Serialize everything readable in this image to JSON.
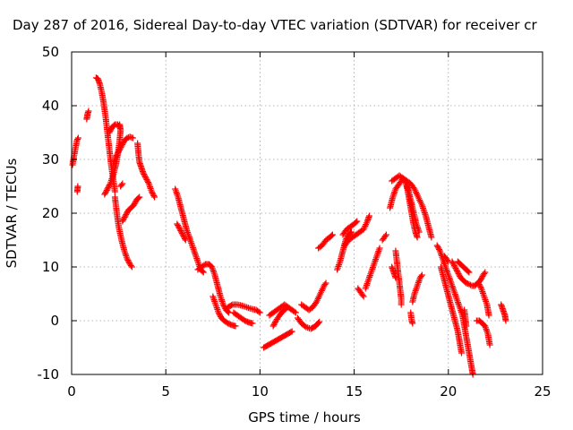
{
  "chart_data": {
    "type": "scatter",
    "title": "Day 287 of 2016, Sidereal Day-to-day VTEC variation (SDTVAR) for receiver cr",
    "xlabel": "GPS time / hours",
    "ylabel": "SDTVAR / TECUs",
    "xlim": [
      0,
      25
    ],
    "ylim": [
      -10,
      50
    ],
    "xticks": [
      "0",
      "5",
      "10",
      "15",
      "20",
      "25"
    ],
    "yticks": [
      "-10",
      "0",
      "10",
      "20",
      "30",
      "40",
      "50"
    ],
    "grid": true,
    "marker": "+",
    "color": "#ff0000",
    "segments": [
      [
        [
          0.05,
          29
        ],
        [
          0.12,
          30.5
        ],
        [
          0.2,
          32
        ],
        [
          0.28,
          33.5
        ],
        [
          0.35,
          34
        ]
      ],
      [
        [
          0.3,
          24
        ],
        [
          0.33,
          25
        ]
      ],
      [
        [
          0.8,
          37.5
        ],
        [
          0.85,
          38.5
        ],
        [
          0.9,
          39
        ]
      ],
      [
        [
          1.3,
          45.2
        ],
        [
          1.4,
          45
        ],
        [
          1.5,
          44
        ],
        [
          1.6,
          42.5
        ],
        [
          1.7,
          40.5
        ],
        [
          1.8,
          38
        ],
        [
          1.9,
          35
        ],
        [
          2.0,
          32
        ],
        [
          2.1,
          29
        ],
        [
          2.2,
          26.5
        ],
        [
          2.3,
          24
        ]
      ],
      [
        [
          1.75,
          23.5
        ],
        [
          1.9,
          24.5
        ],
        [
          2.05,
          25.5
        ],
        [
          2.2,
          27
        ],
        [
          2.35,
          29
        ],
        [
          2.45,
          31
        ],
        [
          2.55,
          33.5
        ],
        [
          2.6,
          35.5
        ],
        [
          2.55,
          36.5
        ]
      ],
      [
        [
          2.0,
          35
        ],
        [
          2.15,
          36
        ],
        [
          2.3,
          36.5
        ],
        [
          2.45,
          36.5
        ],
        [
          2.55,
          36
        ]
      ],
      [
        [
          2.3,
          23
        ],
        [
          2.4,
          20
        ],
        [
          2.5,
          17.5
        ],
        [
          2.65,
          15
        ],
        [
          2.8,
          13
        ],
        [
          2.95,
          11.5
        ],
        [
          3.1,
          10.5
        ],
        [
          3.2,
          10
        ]
      ],
      [
        [
          2.2,
          29
        ],
        [
          2.35,
          30.5
        ],
        [
          2.5,
          31.5
        ],
        [
          2.65,
          32.5
        ],
        [
          2.8,
          33.5
        ],
        [
          2.95,
          34
        ],
        [
          3.1,
          34.2
        ],
        [
          3.25,
          34
        ]
      ],
      [
        [
          2.7,
          18.5
        ],
        [
          2.85,
          19.5
        ],
        [
          3.0,
          20.5
        ],
        [
          3.15,
          21
        ],
        [
          3.3,
          21.5
        ],
        [
          3.45,
          22.5
        ],
        [
          3.6,
          23
        ]
      ],
      [
        [
          2.6,
          25
        ],
        [
          2.7,
          25.5
        ]
      ],
      [
        [
          3.5,
          33
        ],
        [
          3.55,
          31
        ],
        [
          3.6,
          29.5
        ],
        [
          3.7,
          28.5
        ],
        [
          3.8,
          27.5
        ],
        [
          3.95,
          26.5
        ],
        [
          4.1,
          25.5
        ],
        [
          4.25,
          24
        ],
        [
          4.4,
          23
        ]
      ],
      [
        [
          5.5,
          24.5
        ],
        [
          5.65,
          23
        ],
        [
          5.8,
          21
        ],
        [
          5.95,
          19
        ],
        [
          6.1,
          17
        ],
        [
          6.3,
          15
        ],
        [
          6.5,
          13
        ],
        [
          6.7,
          11
        ],
        [
          6.85,
          9.5
        ],
        [
          7.0,
          9
        ]
      ],
      [
        [
          5.6,
          18
        ],
        [
          5.75,
          17
        ],
        [
          5.9,
          16
        ],
        [
          6.05,
          15
        ]
      ],
      [
        [
          6.7,
          9.5
        ],
        [
          6.9,
          10
        ],
        [
          7.1,
          10.5
        ],
        [
          7.3,
          10.5
        ],
        [
          7.45,
          10
        ],
        [
          7.6,
          8.5
        ],
        [
          7.75,
          6.5
        ],
        [
          7.9,
          4.5
        ],
        [
          8.05,
          3
        ],
        [
          8.2,
          2
        ],
        [
          8.35,
          1.5
        ]
      ],
      [
        [
          7.5,
          4.5
        ],
        [
          7.65,
          3
        ],
        [
          7.8,
          1.5
        ],
        [
          7.95,
          0.5
        ],
        [
          8.1,
          0
        ],
        [
          8.3,
          -0.5
        ],
        [
          8.5,
          -0.8
        ],
        [
          8.7,
          -1
        ]
      ],
      [
        [
          8.3,
          2.5
        ],
        [
          8.55,
          3
        ],
        [
          8.8,
          3
        ],
        [
          9.05,
          2.8
        ],
        [
          9.3,
          2.5
        ],
        [
          9.55,
          2.2
        ],
        [
          9.8,
          2
        ],
        [
          10.0,
          1.5
        ]
      ],
      [
        [
          8.6,
          1.5
        ],
        [
          8.8,
          1
        ],
        [
          9.0,
          0.5
        ],
        [
          9.2,
          0
        ],
        [
          9.4,
          -0.3
        ],
        [
          9.6,
          -0.5
        ]
      ],
      [
        [
          10.2,
          -5
        ],
        [
          10.45,
          -4.5
        ],
        [
          10.7,
          -4
        ],
        [
          10.95,
          -3.5
        ],
        [
          11.2,
          -3
        ],
        [
          11.45,
          -2.5
        ],
        [
          11.7,
          -2
        ]
      ],
      [
        [
          10.5,
          1
        ],
        [
          10.7,
          1.5
        ],
        [
          10.9,
          2
        ],
        [
          11.1,
          2.5
        ],
        [
          11.3,
          3
        ],
        [
          11.5,
          2.5
        ],
        [
          11.7,
          2
        ],
        [
          11.9,
          1.5
        ]
      ],
      [
        [
          10.7,
          -1
        ],
        [
          10.85,
          0
        ],
        [
          11.0,
          0.8
        ],
        [
          11.15,
          1.5
        ],
        [
          11.3,
          2
        ],
        [
          11.45,
          2.5
        ]
      ],
      [
        [
          12.0,
          0.5
        ],
        [
          12.2,
          -0.5
        ],
        [
          12.45,
          -1.2
        ],
        [
          12.7,
          -1.5
        ],
        [
          12.95,
          -1
        ],
        [
          13.15,
          -0.2
        ]
      ],
      [
        [
          12.2,
          3
        ],
        [
          12.4,
          2.5
        ],
        [
          12.6,
          2
        ],
        [
          12.8,
          2.5
        ],
        [
          13.0,
          3.5
        ],
        [
          13.2,
          5
        ],
        [
          13.4,
          6.5
        ],
        [
          13.5,
          7
        ]
      ],
      [
        [
          13.1,
          13.5
        ],
        [
          13.3,
          14
        ],
        [
          13.5,
          15
        ],
        [
          13.7,
          15.5
        ],
        [
          13.85,
          16
        ]
      ],
      [
        [
          14.1,
          9.5
        ],
        [
          14.25,
          11
        ],
        [
          14.4,
          13
        ],
        [
          14.55,
          15
        ],
        [
          14.7,
          16
        ],
        [
          14.85,
          16.5
        ]
      ],
      [
        [
          14.4,
          16
        ],
        [
          14.6,
          17
        ],
        [
          14.8,
          17.5
        ],
        [
          15.0,
          18
        ],
        [
          15.15,
          18.5
        ]
      ],
      [
        [
          14.5,
          14
        ],
        [
          14.7,
          15
        ],
        [
          14.9,
          15.5
        ],
        [
          15.1,
          16
        ],
        [
          15.3,
          16.5
        ],
        [
          15.5,
          17
        ],
        [
          15.7,
          18.5
        ],
        [
          15.8,
          19.5
        ]
      ],
      [
        [
          15.2,
          6
        ],
        [
          15.3,
          5.5
        ],
        [
          15.4,
          5
        ],
        [
          15.5,
          4.5
        ]
      ],
      [
        [
          15.6,
          6
        ],
        [
          15.75,
          7.5
        ],
        [
          15.9,
          9
        ],
        [
          16.05,
          10.5
        ],
        [
          16.2,
          12
        ],
        [
          16.35,
          13.5
        ]
      ],
      [
        [
          16.5,
          15
        ],
        [
          16.6,
          15.5
        ],
        [
          16.7,
          16
        ]
      ],
      [
        [
          16.9,
          21
        ],
        [
          17.05,
          23
        ],
        [
          17.2,
          24.5
        ],
        [
          17.4,
          25.5
        ],
        [
          17.6,
          26.5
        ],
        [
          17.8,
          26
        ],
        [
          18.0,
          25.5
        ],
        [
          18.2,
          24.5
        ],
        [
          18.4,
          23
        ],
        [
          18.6,
          21.5
        ],
        [
          18.8,
          19.5
        ],
        [
          18.95,
          17.5
        ],
        [
          19.1,
          15.5
        ]
      ],
      [
        [
          17.0,
          26
        ],
        [
          17.2,
          26.5
        ],
        [
          17.4,
          27
        ],
        [
          17.6,
          26.5
        ],
        [
          17.75,
          25.5
        ],
        [
          17.85,
          24
        ],
        [
          17.95,
          22
        ],
        [
          18.05,
          20
        ],
        [
          18.15,
          18
        ],
        [
          18.25,
          16.5
        ],
        [
          18.35,
          15.5
        ]
      ],
      [
        [
          17.8,
          25
        ],
        [
          17.9,
          24
        ],
        [
          18.0,
          22.5
        ],
        [
          18.1,
          21
        ],
        [
          18.2,
          19.5
        ],
        [
          18.3,
          18
        ],
        [
          18.45,
          16.5
        ]
      ],
      [
        [
          17.2,
          13
        ],
        [
          17.25,
          11.5
        ],
        [
          17.3,
          10
        ],
        [
          17.35,
          8.5
        ],
        [
          17.4,
          7
        ],
        [
          17.45,
          5.5
        ],
        [
          17.5,
          4
        ],
        [
          17.5,
          3
        ]
      ],
      [
        [
          17.0,
          10
        ],
        [
          17.1,
          9
        ],
        [
          17.2,
          8
        ]
      ],
      [
        [
          18.0,
          1.5
        ],
        [
          18.05,
          0
        ],
        [
          18.1,
          -0.5
        ]
      ],
      [
        [
          18.1,
          3.5
        ],
        [
          18.2,
          5
        ],
        [
          18.35,
          6.5
        ],
        [
          18.5,
          8
        ],
        [
          18.6,
          8.5
        ]
      ],
      [
        [
          19.4,
          14
        ],
        [
          19.55,
          13
        ],
        [
          19.7,
          11.5
        ],
        [
          19.85,
          10
        ],
        [
          20.0,
          8.5
        ],
        [
          20.15,
          7
        ],
        [
          20.3,
          5.5
        ],
        [
          20.45,
          4
        ],
        [
          20.6,
          2.5
        ],
        [
          20.75,
          1
        ],
        [
          20.85,
          -1
        ],
        [
          20.95,
          -3
        ],
        [
          21.05,
          -5
        ],
        [
          21.15,
          -7
        ],
        [
          21.25,
          -9
        ],
        [
          21.3,
          -10
        ]
      ],
      [
        [
          19.6,
          10
        ],
        [
          19.75,
          8
        ],
        [
          19.9,
          6
        ],
        [
          20.05,
          4
        ],
        [
          20.2,
          2
        ],
        [
          20.35,
          0
        ],
        [
          20.5,
          -2
        ],
        [
          20.6,
          -4
        ],
        [
          20.7,
          -6
        ]
      ],
      [
        [
          19.8,
          12
        ],
        [
          19.9,
          11.5
        ],
        [
          20.0,
          11
        ]
      ],
      [
        [
          20.2,
          11
        ],
        [
          20.35,
          10
        ],
        [
          20.5,
          9
        ],
        [
          20.65,
          8
        ],
        [
          20.8,
          7.5
        ],
        [
          20.95,
          7
        ],
        [
          21.1,
          6.8
        ],
        [
          21.25,
          6.5
        ],
        [
          21.4,
          6.5
        ],
        [
          21.55,
          7
        ],
        [
          21.7,
          7.5
        ],
        [
          21.85,
          8.5
        ],
        [
          21.95,
          9
        ]
      ],
      [
        [
          20.5,
          11
        ],
        [
          20.65,
          10.5
        ],
        [
          20.8,
          10
        ],
        [
          20.95,
          9.5
        ],
        [
          21.1,
          9
        ]
      ],
      [
        [
          21.6,
          7
        ],
        [
          21.75,
          6
        ],
        [
          21.9,
          4.5
        ],
        [
          22.05,
          3
        ],
        [
          22.15,
          1
        ]
      ],
      [
        [
          21.5,
          0
        ],
        [
          21.65,
          0
        ],
        [
          21.8,
          -0.5
        ],
        [
          21.95,
          -1
        ],
        [
          22.1,
          -2.5
        ],
        [
          22.2,
          -4.5
        ]
      ],
      [
        [
          20.85,
          2
        ],
        [
          20.9,
          0.5
        ],
        [
          20.95,
          -1
        ]
      ],
      [
        [
          22.8,
          3
        ],
        [
          22.9,
          2
        ],
        [
          23.0,
          1
        ],
        [
          23.05,
          0
        ]
      ]
    ]
  }
}
